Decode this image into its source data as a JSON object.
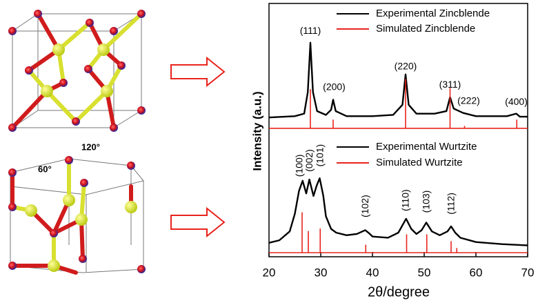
{
  "structure_labels": {
    "angle_top": "120°",
    "angle_side": "60°"
  },
  "chart_data": {
    "type": "line",
    "xlabel": "2θ/degree",
    "ylabel": "Intensity (a.u.)",
    "xlim": [
      20,
      70
    ],
    "xticks": [
      20,
      30,
      40,
      50,
      60,
      70
    ],
    "ylim": [
      0,
      100
    ],
    "series": [
      {
        "name": "Experimental Zincblende",
        "color": "#000000",
        "x": [
          20,
          25,
          26.8,
          27.5,
          28,
          28.5,
          29.3,
          31,
          32,
          32.4,
          32.9,
          35,
          40,
          44,
          45.8,
          46.4,
          47,
          48.5,
          52,
          54.3,
          55,
          55.7,
          57.5,
          60,
          66,
          67.8,
          68.5,
          70
        ],
        "values": [
          55,
          55.5,
          56.5,
          65,
          84.5,
          65,
          57.5,
          56,
          58,
          62,
          57.5,
          55.5,
          55.5,
          56,
          60,
          72,
          60,
          56.5,
          56.5,
          57.5,
          63,
          58.5,
          56.8,
          55.5,
          55.5,
          56.5,
          55.3,
          55.3
        ]
      },
      {
        "name": "Simulated Zincblende",
        "color": "#e8231d",
        "x": [
          20,
          28,
          28,
          28,
          32.4,
          32.4,
          32.4,
          46.4,
          46.4,
          46.4,
          55,
          55,
          55,
          57.8,
          57.8,
          57.8,
          67.9,
          67.9,
          67.9,
          70
        ],
        "values": [
          50.7,
          50.7,
          66,
          50.7,
          50.7,
          54,
          50.7,
          50.7,
          70,
          50.7,
          50.7,
          66.5,
          50.7,
          50.7,
          51.5,
          50.7,
          50.7,
          54,
          50.7,
          50.7
        ]
      },
      {
        "name": "Experimental Wurtzite",
        "color": "#000000",
        "x": [
          20,
          22,
          24,
          25,
          25.8,
          26.5,
          27.2,
          27.8,
          28.6,
          29.2,
          29.8,
          30.5,
          31,
          32,
          33,
          35,
          37,
          38.6,
          39.5,
          40,
          43,
          45,
          46.5,
          47.5,
          48.5,
          49.5,
          50.4,
          51.5,
          53,
          54.5,
          55.2,
          56,
          57,
          60,
          65,
          70
        ],
        "values": [
          5.5,
          6.5,
          10,
          17,
          26,
          30,
          25,
          30.5,
          24,
          28,
          31,
          24,
          16,
          11,
          9.5,
          8.5,
          9,
          10.5,
          9,
          8,
          7.5,
          9.5,
          15,
          11,
          9,
          10.5,
          13.5,
          10,
          8.5,
          10,
          12,
          9.5,
          7.5,
          5.8,
          5,
          4.5
        ]
      },
      {
        "name": "Simulated Wurtzite",
        "color": "#e8231d",
        "x": [
          20,
          26.4,
          26.4,
          26.4,
          27.6,
          27.6,
          27.6,
          29.9,
          29.9,
          29.9,
          38.7,
          38.7,
          38.7,
          46.6,
          46.6,
          46.6,
          50.5,
          50.5,
          50.5,
          55.2,
          55.2,
          55.2,
          56.3,
          56.3,
          56.3,
          70
        ],
        "values": [
          1.6,
          1.6,
          17.4,
          1.6,
          1.6,
          10,
          1.6,
          1.6,
          11,
          1.6,
          1.6,
          4.6,
          1.6,
          1.6,
          8.7,
          1.6,
          1.6,
          8.7,
          1.6,
          1.6,
          6,
          1.6,
          1.6,
          3.3,
          1.6,
          1.6
        ]
      }
    ],
    "annotations": [
      {
        "text": "(111)",
        "x": 28,
        "y": 89
      },
      {
        "text": "(200)",
        "x": 32.6,
        "y": 66.8
      },
      {
        "text": "(220)",
        "x": 46.4,
        "y": 75
      },
      {
        "text": "(311)",
        "x": 55,
        "y": 67.8
      },
      {
        "text": "(222)",
        "x": 58.6,
        "y": 61.3
      },
      {
        "text": "(400)",
        "x": 67.8,
        "y": 61
      },
      {
        "text": "(100)",
        "x": 26,
        "y": 36,
        "orientation": "vertical"
      },
      {
        "text": "(002)",
        "x": 27.9,
        "y": 38,
        "orientation": "vertical"
      },
      {
        "text": "(101)",
        "x": 30,
        "y": 40,
        "orientation": "vertical"
      },
      {
        "text": "(102)",
        "x": 38.7,
        "y": 20,
        "orientation": "vertical"
      },
      {
        "text": "(110)",
        "x": 46.5,
        "y": 22.3,
        "orientation": "vertical"
      },
      {
        "text": "(103)",
        "x": 50.5,
        "y": 21.8,
        "orientation": "vertical"
      },
      {
        "text": "(112)",
        "x": 55.3,
        "y": 21,
        "orientation": "vertical"
      }
    ]
  }
}
